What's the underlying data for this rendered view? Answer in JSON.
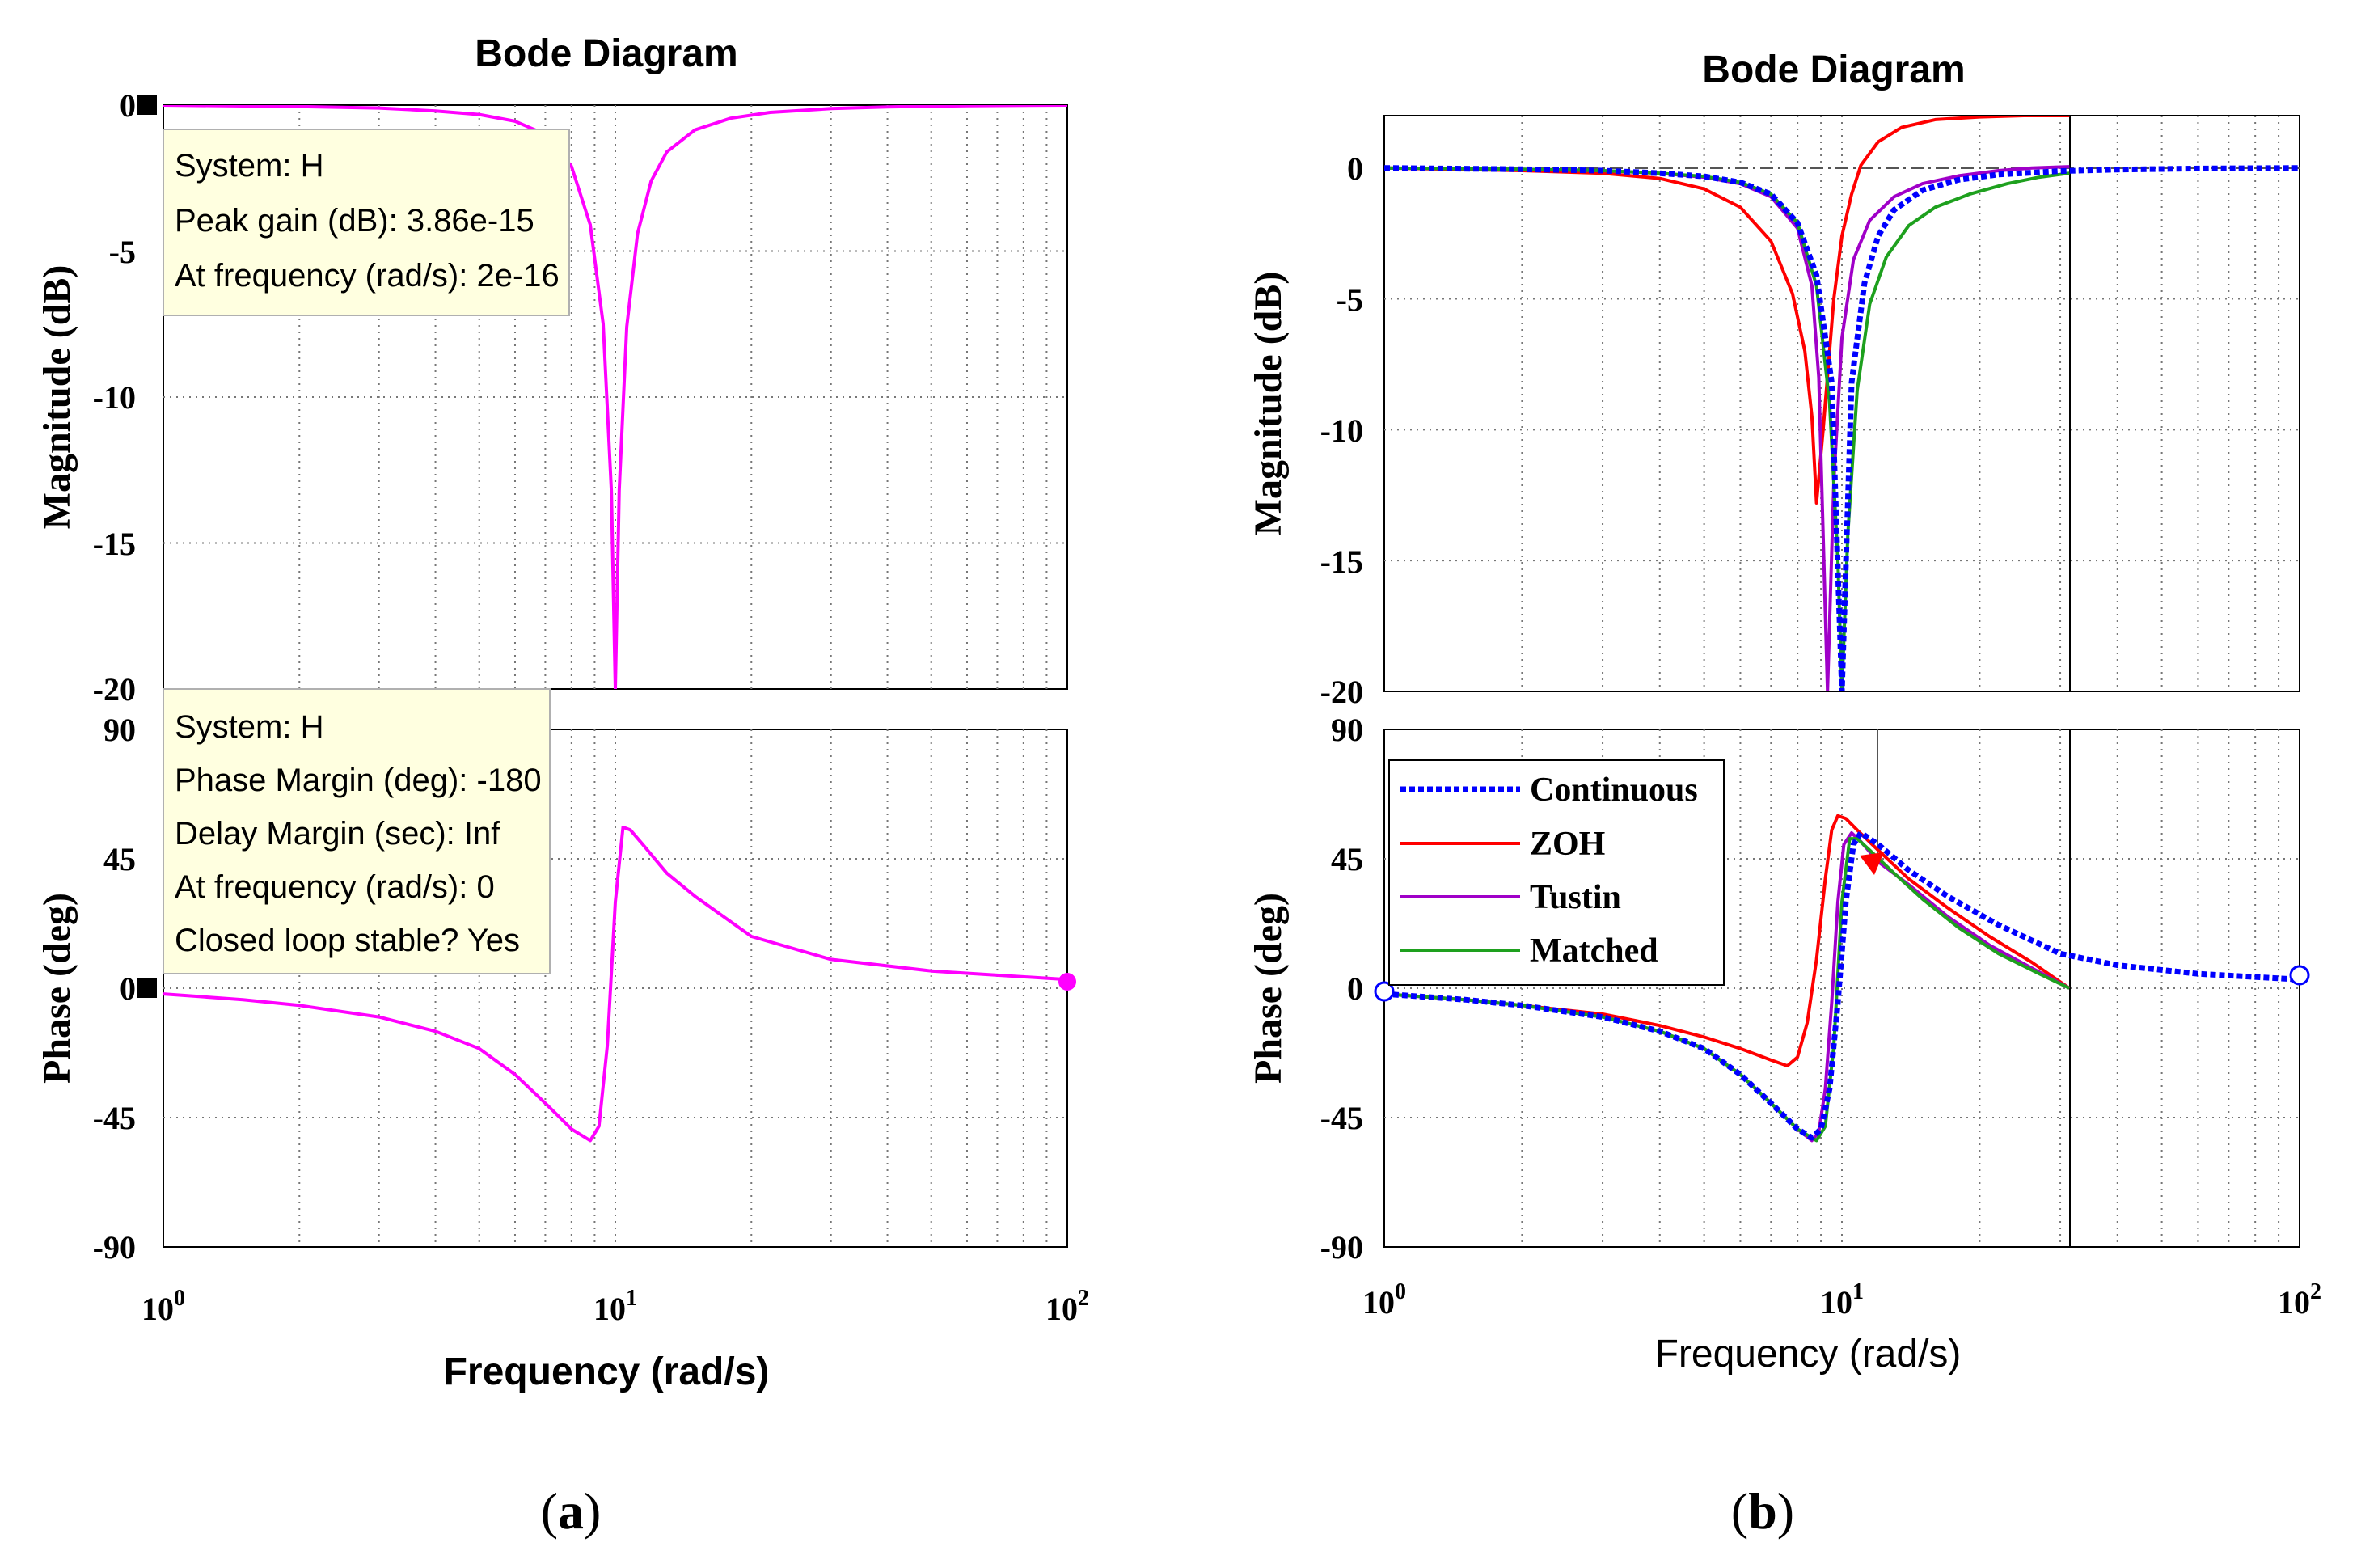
{
  "panels": {
    "a": {
      "caption": "a",
      "title": "Bode Diagram",
      "xlabel": "Frequency  (rad/s)",
      "magnitude": {
        "ylabel": "Magnitude (dB)",
        "yticks": [
          "0",
          "-5",
          "-10",
          "-15",
          "-20"
        ]
      },
      "phase": {
        "ylabel": "Phase (deg)",
        "yticks": [
          "90",
          "45",
          "0",
          "-45",
          "-90"
        ]
      },
      "xticks": [
        {
          "base": "10",
          "exp": "0"
        },
        {
          "base": "10",
          "exp": "1"
        },
        {
          "base": "10",
          "exp": "2"
        }
      ],
      "datatip_mag": [
        "System: H",
        "Peak gain (dB): 3.86e-15",
        "At frequency (rad/s): 2e-16"
      ],
      "datatip_phase": [
        "System: H",
        "Phase Margin (deg): -180",
        "Delay Margin (sec): Inf",
        "At frequency (rad/s): 0",
        "Closed loop stable? Yes"
      ]
    },
    "b": {
      "caption": "b",
      "title": "Bode Diagram",
      "xlabel": "Frequency  (rad/s)",
      "magnitude": {
        "ylabel": "Magnitude (dB)",
        "yticks": [
          "0",
          "-5",
          "-10",
          "-15",
          "-20"
        ]
      },
      "phase": {
        "ylabel": "Phase (deg)",
        "yticks": [
          "90",
          "45",
          "0",
          "-45",
          "-90"
        ]
      },
      "xticks": [
        {
          "base": "10",
          "exp": "0"
        },
        {
          "base": "10",
          "exp": "1"
        },
        {
          "base": "10",
          "exp": "2"
        }
      ],
      "legend": [
        "Continuous",
        "ZOH",
        "Tustin",
        "Matched"
      ]
    }
  },
  "colors": {
    "H": "#ff00ff",
    "Continuous": "#0000ff",
    "ZOH": "#ff0000",
    "Tustin": "#a000c8",
    "Matched": "#1ea01e",
    "datatip_bg": "#ffffe0"
  },
  "chart_data": [
    {
      "type": "line",
      "title": "Bode Diagram",
      "xlabel": "Frequency  (rad/s)",
      "xscale": "log",
      "xlim": [
        1,
        100
      ],
      "subplots": [
        {
          "name": "magnitude",
          "ylabel": "Magnitude (dB)",
          "ylim": [
            -20,
            0
          ],
          "series": [
            {
              "name": "H",
              "x": [
                1,
                2,
                3,
                4,
                5,
                6,
                7,
                8,
                8.8,
                9.4,
                9.8,
                10,
                10.2,
                10.6,
                11.2,
                12,
                13,
                15,
                18,
                22,
                30,
                40,
                60,
                100
              ],
              "y": [
                0,
                -0.05,
                -0.1,
                -0.2,
                -0.32,
                -0.55,
                -1.0,
                -2.1,
                -4.1,
                -7.5,
                -13.2,
                -20,
                -13.2,
                -7.6,
                -4.4,
                -2.6,
                -1.6,
                -0.85,
                -0.45,
                -0.25,
                -0.12,
                -0.06,
                -0.02,
                0
              ]
            }
          ]
        },
        {
          "name": "phase",
          "ylabel": "Phase (deg)",
          "ylim": [
            -90,
            90
          ],
          "series": [
            {
              "name": "H",
              "x": [
                1,
                1.5,
                2,
                3,
                4,
                5,
                6,
                7,
                8,
                8.8,
                9.2,
                9.6,
                10,
                10.4,
                10.8,
                11.5,
                13,
                15,
                20,
                30,
                50,
                100
              ],
              "y": [
                -2,
                -4,
                -6,
                -10,
                -15,
                -21,
                -30,
                -40,
                -49,
                -53,
                -48,
                -20,
                30,
                56,
                55,
                50,
                40,
                32,
                18,
                10,
                6,
                3
              ]
            }
          ]
        }
      ],
      "datatips": [
        [
          "System: H",
          "Peak gain (dB): 3.86e-15",
          "At frequency (rad/s): 2e-16"
        ],
        [
          "System: H",
          "Phase Margin (deg): -180",
          "Delay Margin (sec): Inf",
          "At frequency (rad/s): 0",
          "Closed loop stable? Yes"
        ]
      ]
    },
    {
      "type": "line",
      "title": "Bode Diagram",
      "xlabel": "Frequency  (rad/s)",
      "xscale": "log",
      "xlim": [
        1,
        100
      ],
      "legend": [
        "Continuous",
        "ZOH",
        "Tustin",
        "Matched"
      ],
      "legend_position": "top-left",
      "subplots": [
        {
          "name": "magnitude",
          "ylabel": "Magnitude (dB)",
          "ylim": [
            -20,
            2
          ],
          "series": [
            {
              "name": "Continuous",
              "x": [
                1,
                2,
                3,
                4,
                5,
                6,
                7,
                8,
                8.8,
                9.5,
                10,
                10.5,
                11.2,
                12,
                13,
                15,
                18,
                22,
                30,
                40,
                60,
                100
              ],
              "y": [
                0,
                -0.05,
                -0.1,
                -0.2,
                -0.32,
                -0.55,
                -1.0,
                -2.1,
                -4.1,
                -8.2,
                -20,
                -8.2,
                -4.4,
                -2.6,
                -1.6,
                -0.85,
                -0.45,
                -0.25,
                -0.12,
                -0.06,
                -0.02,
                0
              ]
            },
            {
              "name": "ZOH",
              "x": [
                1,
                2,
                3,
                4,
                5,
                6,
                7,
                7.8,
                8.3,
                8.6,
                8.8,
                9.1,
                9.6,
                10,
                10.5,
                11,
                12,
                13.5,
                16,
                20,
                25,
                31.4
              ],
              "y": [
                0,
                -0.1,
                -0.2,
                -0.4,
                -0.8,
                -1.5,
                -2.8,
                -4.8,
                -7.0,
                -9.5,
                -12.8,
                -10,
                -5,
                -2.6,
                -1.0,
                0.1,
                1.0,
                1.55,
                1.85,
                1.95,
                2.0,
                2.0
              ]
            },
            {
              "name": "Tustin",
              "x": [
                1,
                2,
                3,
                4,
                5,
                6,
                7,
                8,
                8.6,
                8.9,
                9.1,
                9.3,
                9.6,
                10,
                10.6,
                11.5,
                13,
                15,
                18,
                22,
                26,
                31.4
              ],
              "y": [
                0,
                -0.05,
                -0.1,
                -0.2,
                -0.35,
                -0.6,
                -1.1,
                -2.3,
                -4.5,
                -8,
                -14,
                -20,
                -12,
                -6.5,
                -3.5,
                -2.0,
                -1.1,
                -0.6,
                -0.3,
                -0.1,
                0,
                0.05
              ]
            },
            {
              "name": "Matched",
              "x": [
                1,
                2,
                3,
                4,
                5,
                6,
                7,
                8,
                8.8,
                9.4,
                9.8,
                10,
                10.3,
                10.8,
                11.5,
                12.5,
                14,
                16,
                19,
                23,
                27,
                31.4
              ],
              "y": [
                0,
                -0.05,
                -0.1,
                -0.2,
                -0.32,
                -0.55,
                -1.0,
                -2.1,
                -4.5,
                -9,
                -15,
                -20,
                -14,
                -8.5,
                -5.2,
                -3.4,
                -2.2,
                -1.5,
                -1.0,
                -0.6,
                -0.35,
                -0.2
              ]
            }
          ]
        },
        {
          "name": "phase",
          "ylabel": "Phase (deg)",
          "ylim": [
            -90,
            90
          ],
          "series": [
            {
              "name": "Continuous",
              "x": [
                1,
                1.5,
                2,
                3,
                4,
                5,
                6,
                7,
                8,
                8.6,
                9,
                9.4,
                9.8,
                10.2,
                10.6,
                11,
                12,
                14,
                17,
                22,
                30,
                40,
                60,
                100
              ],
              "y": [
                -2,
                -4,
                -6,
                -10,
                -15,
                -21,
                -30,
                -40,
                -49,
                -52,
                -49,
                -35,
                -5,
                30,
                50,
                54,
                50,
                41,
                32,
                22,
                12,
                8,
                5,
                3
              ]
            },
            {
              "name": "ZOH",
              "x": [
                1,
                1.5,
                2,
                3,
                4,
                5,
                6,
                7,
                7.6,
                8,
                8.4,
                8.8,
                9.2,
                9.5,
                9.8,
                10.2,
                10.8,
                12,
                14,
                17,
                21,
                26,
                31.4
              ],
              "y": [
                -2,
                -4,
                -6,
                -9,
                -13,
                -17,
                -21,
                -25,
                -27,
                -24,
                -12,
                10,
                38,
                55,
                60,
                59,
                55,
                48,
                38,
                28,
                18,
                9,
                0
              ]
            },
            {
              "name": "Tustin",
              "x": [
                1,
                1.5,
                2,
                3,
                4,
                5,
                6,
                7,
                8,
                8.6,
                8.9,
                9.2,
                9.5,
                9.8,
                10.1,
                10.5,
                11,
                12,
                14,
                17,
                21,
                26,
                31.4
              ],
              "y": [
                -2,
                -4,
                -6,
                -10,
                -15,
                -21,
                -30,
                -40,
                -49,
                -53,
                -50,
                -35,
                -5,
                30,
                50,
                54,
                51,
                44,
                36,
                25,
                15,
                7,
                0
              ]
            },
            {
              "name": "Matched",
              "x": [
                1,
                1.5,
                2,
                3,
                4,
                5,
                6,
                7,
                8,
                8.8,
                9.2,
                9.6,
                10,
                10.4,
                10.8,
                11.5,
                13,
                15,
                18,
                22,
                27,
                31.4
              ],
              "y": [
                -2,
                -4,
                -6,
                -10,
                -15,
                -21,
                -30,
                -40,
                -49,
                -53,
                -48,
                -20,
                30,
                52,
                52,
                48,
                40,
                31,
                21,
                12,
                5,
                0
              ]
            }
          ]
        }
      ]
    }
  ]
}
